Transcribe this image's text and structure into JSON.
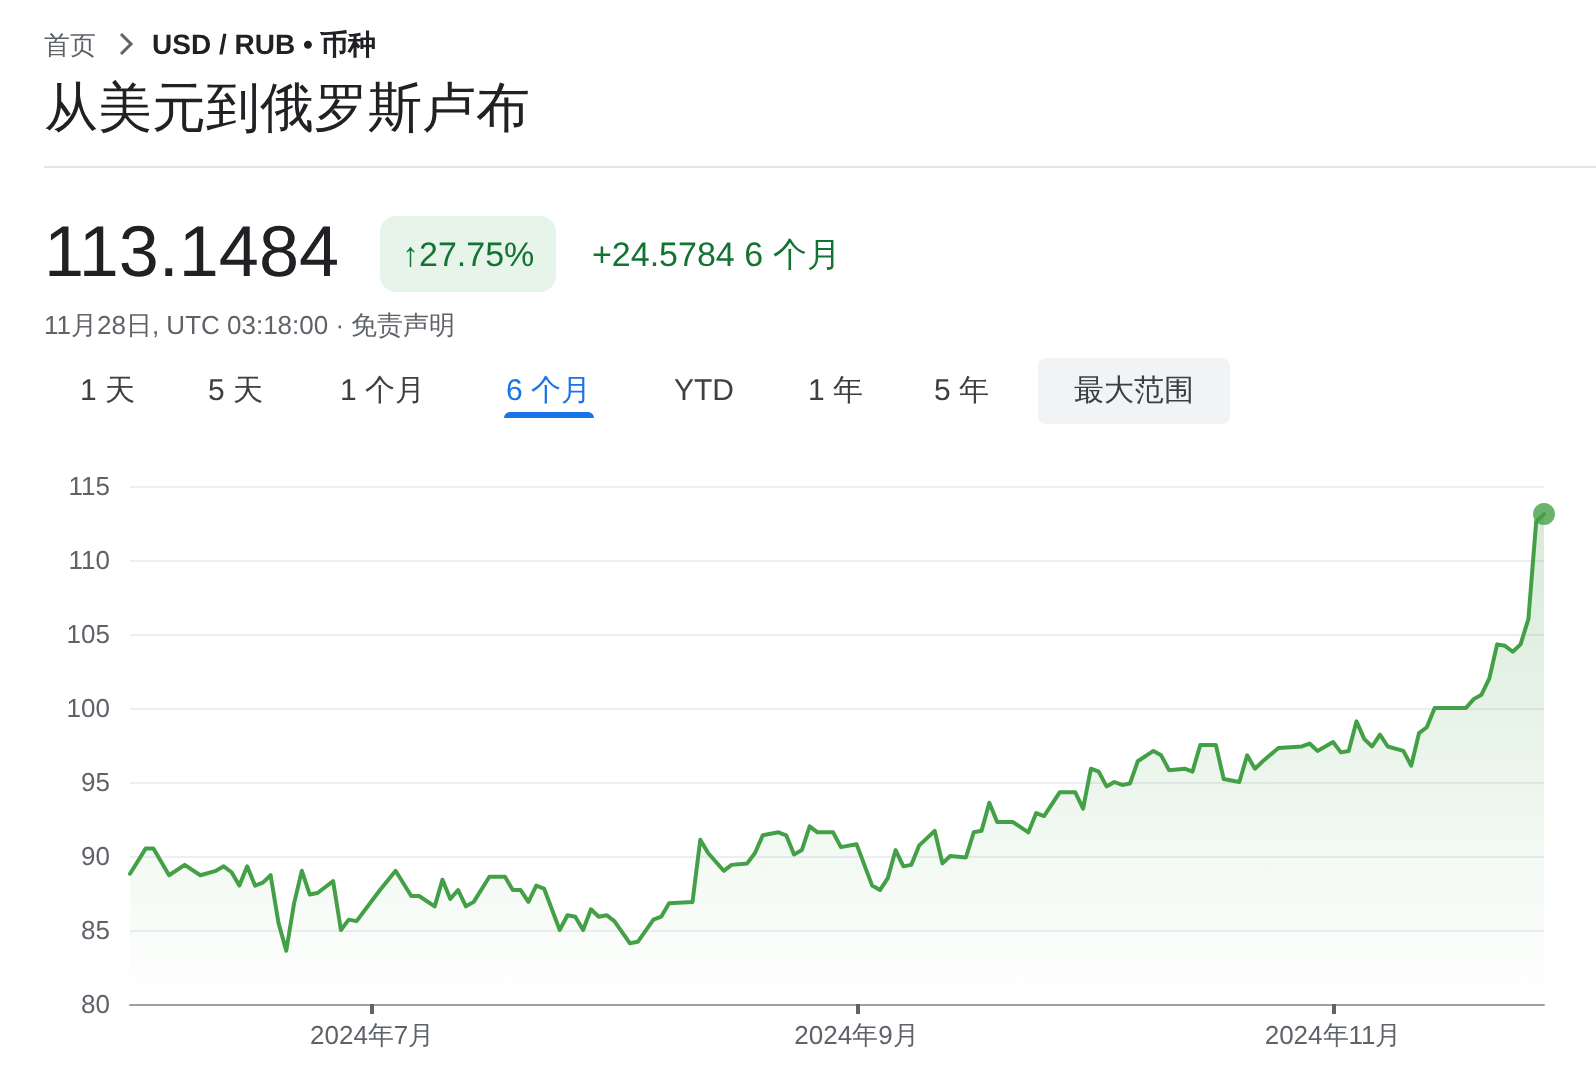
{
  "chart_data": {
    "type": "area",
    "title": "从美元到俄罗斯卢布",
    "annotations": [
      "首页",
      "USD / RUB • 币种",
      "113.1484",
      "↑27.75%",
      "+24.5784 6 个月",
      "11月28日, UTC 03:18:00 · 免责声明",
      "1 天",
      "5 天",
      "1 个月",
      "6 个月",
      "YTD",
      "1 年",
      "5 年",
      "最大范围"
    ],
    "series": [
      {
        "color": "#43a047",
        "x": [
          "2024-05-31",
          "2024-06-02",
          "2024-06-03",
          "2024-06-05",
          "2024-06-07",
          "2024-06-09",
          "2024-06-11",
          "2024-06-12",
          "2024-06-13",
          "2024-06-14",
          "2024-06-15",
          "2024-06-16",
          "2024-06-17",
          "2024-06-18",
          "2024-06-19",
          "2024-06-20",
          "2024-06-21",
          "2024-06-22",
          "2024-06-23",
          "2024-06-24",
          "2024-06-26",
          "2024-06-27",
          "2024-06-28",
          "2024-06-29",
          "2024-07-02",
          "2024-07-04",
          "2024-07-06",
          "2024-07-07",
          "2024-07-09",
          "2024-07-10",
          "2024-07-11",
          "2024-07-12",
          "2024-07-13",
          "2024-07-14",
          "2024-07-16",
          "2024-07-18",
          "2024-07-19",
          "2024-07-20",
          "2024-07-21",
          "2024-07-22",
          "2024-07-23",
          "2024-07-25",
          "2024-07-26",
          "2024-07-27",
          "2024-07-28",
          "2024-07-29",
          "2024-07-30",
          "2024-07-31",
          "2024-08-01",
          "2024-08-03",
          "2024-08-04",
          "2024-08-06",
          "2024-08-07",
          "2024-08-08",
          "2024-08-11",
          "2024-08-12",
          "2024-08-13",
          "2024-08-15",
          "2024-08-16",
          "2024-08-18",
          "2024-08-19",
          "2024-08-20",
          "2024-08-22",
          "2024-08-23",
          "2024-08-24",
          "2024-08-25",
          "2024-08-26",
          "2024-08-27",
          "2024-08-29",
          "2024-08-30",
          "2024-09-01",
          "2024-09-02",
          "2024-09-03",
          "2024-09-04",
          "2024-09-05",
          "2024-09-06",
          "2024-09-07",
          "2024-09-08",
          "2024-09-09",
          "2024-09-11",
          "2024-09-12",
          "2024-09-13",
          "2024-09-15",
          "2024-09-16",
          "2024-09-17",
          "2024-09-18",
          "2024-09-19",
          "2024-09-21",
          "2024-09-23",
          "2024-09-24",
          "2024-09-25",
          "2024-09-27",
          "2024-09-29",
          "2024-09-30",
          "2024-10-01",
          "2024-10-02",
          "2024-10-03",
          "2024-10-04",
          "2024-10-05",
          "2024-10-06",
          "2024-10-07",
          "2024-10-09",
          "2024-10-10",
          "2024-10-11",
          "2024-10-13",
          "2024-10-14",
          "2024-10-15",
          "2024-10-17",
          "2024-10-18",
          "2024-10-20",
          "2024-10-21",
          "2024-10-22",
          "2024-10-23",
          "2024-10-25",
          "2024-10-28",
          "2024-10-29",
          "2024-10-30",
          "2024-11-01",
          "2024-11-02",
          "2024-11-03",
          "2024-11-04",
          "2024-11-05",
          "2024-11-06",
          "2024-11-07",
          "2024-11-08",
          "2024-11-10",
          "2024-11-11",
          "2024-11-12",
          "2024-11-13",
          "2024-11-14",
          "2024-11-16",
          "2024-11-18",
          "2024-11-19",
          "2024-11-20",
          "2024-11-21",
          "2024-11-22",
          "2024-11-23",
          "2024-11-24",
          "2024-11-25",
          "2024-11-26",
          "2024-11-27",
          "2024-11-28"
        ],
        "values": [
          88.8,
          90.5,
          90.5,
          88.7,
          89.4,
          88.7,
          89.0,
          89.3,
          88.9,
          88.0,
          89.3,
          88.0,
          88.2,
          88.7,
          85.5,
          83.6,
          86.8,
          89.0,
          87.4,
          87.5,
          88.3,
          85.0,
          85.7,
          85.6,
          87.7,
          89.0,
          87.3,
          87.3,
          86.6,
          88.4,
          87.1,
          87.7,
          86.6,
          86.9,
          88.6,
          88.6,
          87.7,
          87.7,
          86.9,
          88.0,
          87.8,
          85.0,
          86.0,
          85.9,
          85.0,
          86.4,
          85.9,
          86.0,
          85.6,
          84.1,
          84.2,
          85.7,
          85.9,
          86.8,
          86.9,
          91.1,
          90.2,
          89.0,
          89.4,
          89.5,
          90.2,
          91.4,
          91.6,
          91.4,
          90.1,
          90.4,
          92.0,
          91.6,
          91.6,
          90.6,
          90.8,
          89.4,
          88.0,
          87.7,
          88.5,
          90.4,
          89.3,
          89.4,
          90.7,
          91.7,
          89.5,
          90.0,
          89.9,
          91.6,
          91.7,
          93.6,
          92.3,
          92.3,
          91.6,
          92.9,
          92.7,
          94.3,
          94.3,
          93.2,
          95.9,
          95.7,
          94.7,
          95.0,
          94.8,
          94.9,
          96.4,
          97.1,
          96.8,
          95.8,
          95.9,
          95.7,
          97.5,
          97.5,
          95.2,
          95.0,
          96.8,
          95.9,
          96.4,
          97.3,
          97.4,
          97.6,
          97.1,
          97.7,
          97.0,
          97.1,
          99.1,
          97.9,
          97.4,
          98.2,
          97.4,
          97.1,
          96.1,
          98.3,
          98.7,
          100.0,
          100.0,
          100.0,
          100.6,
          100.9,
          102.0,
          104.3,
          104.2,
          103.8,
          104.3,
          106.0,
          112.6,
          113.1
        ]
      },
      {
        "type": "scatter",
        "marker": "circle",
        "color": "#43a047",
        "x": [
          "2024-11-28"
        ],
        "values": [
          113.1
        ]
      }
    ],
    "xlim": [
      "2024-05-31",
      "2024-11-28"
    ],
    "xticks": [
      {
        "value": "2024-07-01",
        "label": "2024年7月"
      },
      {
        "value": "2024-09-01",
        "label": "2024年9月"
      },
      {
        "value": "2024-11-01",
        "label": "2024年11月"
      }
    ],
    "ylim": [
      80,
      115
    ],
    "yticks": [
      80,
      85,
      90,
      95,
      100,
      105,
      110,
      115
    ],
    "grid": "y",
    "marker": "none"
  }
}
